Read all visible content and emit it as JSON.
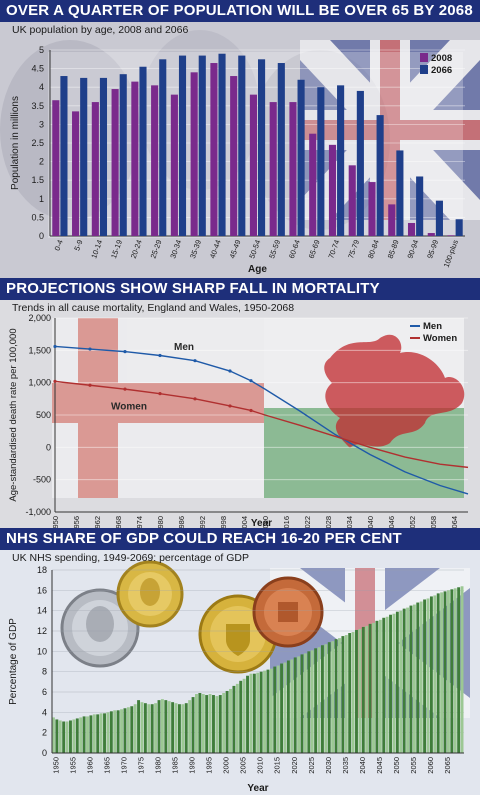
{
  "panels": [
    {
      "headline": "OVER A QUARTER OF POPULATION WILL BE OVER 65 BY 2068",
      "subtitle": "UK population by age, 2008 and 2066"
    },
    {
      "headline": "PROJECTIONS SHOW SHARP FALL IN MORTALITY",
      "subtitle": "Trends in all cause mortality, England and Wales, 1950-2068"
    },
    {
      "headline": "NHS SHARE OF GDP COULD REACH 16-20 PER CENT",
      "subtitle": "UK NHS spending, 1949-2069: percentage of GDP"
    }
  ],
  "colors": {
    "band": "#1e2f7a",
    "bar_2008": "#7a2a8c",
    "bar_2066": "#1f3f8a",
    "men": "#1f5aa8",
    "women": "#b03030",
    "gdp_bar": "#3f7d3a",
    "gdp_bar_light": "#9cc894"
  },
  "chart_data": [
    {
      "type": "bar",
      "xlabel": "Age",
      "ylabel": "Population in millions",
      "ylim": [
        0,
        5
      ],
      "yticks": [
        "0",
        "0.5",
        "1",
        "1.5",
        "2",
        "2.5",
        "3",
        "3.5",
        "4",
        "4.5",
        "5"
      ],
      "legend_position": "top-right",
      "categories": [
        "0-4",
        "5-9",
        "10-14",
        "15-19",
        "20-24",
        "25-29",
        "30-34",
        "35-39",
        "40-44",
        "45-49",
        "50-54",
        "55-59",
        "60-64",
        "65-69",
        "70-74",
        "75-79",
        "80-84",
        "85-89",
        "90-94",
        "95-99",
        "100-plus"
      ],
      "series": [
        {
          "name": "2008",
          "values": [
            3.65,
            3.35,
            3.6,
            3.95,
            4.15,
            4.05,
            3.8,
            4.4,
            4.65,
            4.3,
            3.8,
            3.6,
            3.6,
            2.75,
            2.45,
            1.9,
            1.45,
            0.85,
            0.35,
            0.08,
            0.02
          ]
        },
        {
          "name": "2066",
          "values": [
            4.3,
            4.25,
            4.25,
            4.35,
            4.55,
            4.75,
            4.85,
            4.85,
            4.9,
            4.85,
            4.75,
            4.65,
            4.2,
            4.0,
            4.05,
            3.9,
            3.25,
            2.3,
            1.6,
            0.95,
            0.45
          ]
        }
      ]
    },
    {
      "type": "line",
      "xlabel": "Year",
      "ylabel": "Age-standardised death rate per 100,000",
      "ylim": [
        -1000,
        2000
      ],
      "yticks": [
        "2,000",
        "1,500",
        "1,000",
        "500",
        "0",
        "-500",
        "-1,000"
      ],
      "xticks": [
        "1950",
        "1956",
        "1962",
        "1968",
        "1974",
        "1980",
        "1986",
        "1992",
        "1998",
        "2004",
        "2010",
        "2016",
        "2022",
        "2028",
        "2034",
        "2040",
        "2046",
        "2052",
        "2058",
        "2064"
      ],
      "legend_position": "top-right",
      "labels": {
        "men": "Men",
        "women": "Women"
      },
      "series": [
        {
          "name": "Men",
          "x": [
            1950,
            1960,
            1970,
            1980,
            1990,
            2000,
            2006,
            2010,
            2020,
            2030,
            2040,
            2050,
            2060,
            2068
          ],
          "values": [
            1560,
            1520,
            1480,
            1420,
            1340,
            1180,
            1030,
            900,
            560,
            200,
            -110,
            -380,
            -590,
            -720
          ]
        },
        {
          "name": "Women",
          "x": [
            1950,
            1960,
            1970,
            1980,
            1990,
            2000,
            2006,
            2010,
            2020,
            2030,
            2040,
            2050,
            2060,
            2068
          ],
          "values": [
            1020,
            960,
            900,
            830,
            750,
            640,
            570,
            500,
            340,
            170,
            0,
            -150,
            -260,
            -310
          ]
        }
      ]
    },
    {
      "type": "bar",
      "xlabel": "Year",
      "ylabel": "Percentage of GDP",
      "ylim": [
        0,
        18
      ],
      "yticks": [
        "0",
        "2",
        "4",
        "6",
        "8",
        "10",
        "12",
        "14",
        "16",
        "18"
      ],
      "xticks": [
        "1950",
        "1955",
        "1960",
        "1965",
        "1970",
        "1975",
        "1980",
        "1985",
        "1990",
        "1995",
        "2000",
        "2005",
        "2010",
        "2015",
        "2020",
        "2025",
        "2030",
        "2035",
        "2040",
        "2045",
        "2050",
        "2055",
        "2060",
        "2065"
      ],
      "x_start": 1949,
      "values": [
        3.5,
        3.3,
        3.2,
        3.1,
        3.1,
        3.2,
        3.3,
        3.4,
        3.5,
        3.6,
        3.6,
        3.7,
        3.8,
        3.8,
        3.9,
        3.9,
        4.0,
        4.1,
        4.2,
        4.2,
        4.3,
        4.4,
        4.5,
        4.6,
        4.8,
        5.2,
        5.0,
        4.9,
        4.8,
        4.8,
        4.9,
        5.2,
        5.3,
        5.2,
        5.1,
        5.0,
        4.9,
        4.8,
        4.8,
        4.9,
        5.2,
        5.5,
        5.8,
        5.9,
        5.8,
        5.7,
        5.8,
        5.7,
        5.6,
        5.7,
        5.9,
        6.1,
        6.3,
        6.6,
        6.8,
        7.1,
        7.3,
        7.6,
        7.8,
        7.8,
        7.9,
        8.0,
        8.1,
        8.2,
        8.3,
        8.5,
        8.6,
        8.8,
        8.9,
        9.1,
        9.2,
        9.4,
        9.5,
        9.7,
        9.8,
        10.0,
        10.1,
        10.3,
        10.4,
        10.6,
        10.7,
        10.9,
        11.0,
        11.2,
        11.3,
        11.5,
        11.6,
        11.8,
        11.9,
        12.1,
        12.2,
        12.4,
        12.5,
        12.7,
        12.8,
        13.0,
        13.1,
        13.3,
        13.4,
        13.6,
        13.7,
        13.9,
        14.0,
        14.2,
        14.3,
        14.5,
        14.6,
        14.8,
        14.9,
        15.1,
        15.2,
        15.4,
        15.5,
        15.7,
        15.8,
        15.9,
        16.0,
        16.1,
        16.2,
        16.3,
        16.4
      ]
    }
  ]
}
